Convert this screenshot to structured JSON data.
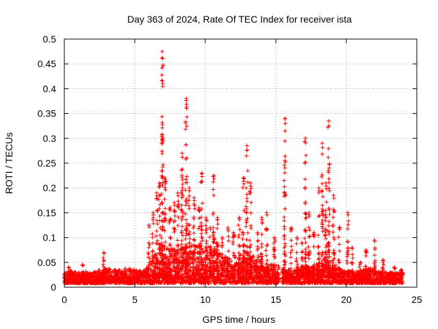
{
  "chart_data": {
    "type": "scatter",
    "title": "Day 363 of 2024, Rate Of TEC Index for receiver ista",
    "xlabel": "GPS time / hours",
    "ylabel": "ROTI / TECUs",
    "xlim": [
      0,
      25
    ],
    "ylim": [
      0,
      0.5
    ],
    "xticks": [
      0,
      5,
      10,
      15,
      20,
      25
    ],
    "yticks": [
      0,
      0.05,
      0.1,
      0.15,
      0.2,
      0.25,
      0.3,
      0.35,
      0.4,
      0.45,
      0.5
    ],
    "grid": true,
    "marker": "+",
    "marker_color": "#ff0000",
    "gap_hours": [
      15.25,
      15.45
    ],
    "baseline_envelope": [
      [
        0.0,
        0.03
      ],
      [
        0.5,
        0.035
      ],
      [
        1.0,
        0.03
      ],
      [
        1.5,
        0.035
      ],
      [
        2.0,
        0.03
      ],
      [
        2.5,
        0.035
      ],
      [
        3.0,
        0.04
      ],
      [
        3.5,
        0.035
      ],
      [
        4.0,
        0.035
      ],
      [
        4.5,
        0.04
      ],
      [
        5.0,
        0.035
      ],
      [
        5.5,
        0.035
      ],
      [
        6.0,
        0.045
      ],
      [
        6.5,
        0.07
      ],
      [
        7.0,
        0.09
      ],
      [
        7.5,
        0.08
      ],
      [
        8.0,
        0.075
      ],
      [
        8.5,
        0.085
      ],
      [
        9.0,
        0.085
      ],
      [
        9.5,
        0.09
      ],
      [
        10.0,
        0.085
      ],
      [
        10.5,
        0.08
      ],
      [
        11.0,
        0.07
      ],
      [
        11.5,
        0.06
      ],
      [
        12.0,
        0.06
      ],
      [
        12.5,
        0.07
      ],
      [
        13.0,
        0.075
      ],
      [
        13.5,
        0.06
      ],
      [
        14.0,
        0.05
      ],
      [
        14.5,
        0.05
      ],
      [
        15.0,
        0.045
      ],
      [
        15.5,
        0.04
      ],
      [
        16.0,
        0.035
      ],
      [
        16.5,
        0.035
      ],
      [
        17.0,
        0.045
      ],
      [
        17.5,
        0.04
      ],
      [
        18.0,
        0.05
      ],
      [
        18.5,
        0.06
      ],
      [
        19.0,
        0.05
      ],
      [
        19.5,
        0.04
      ],
      [
        20.0,
        0.035
      ],
      [
        20.5,
        0.03
      ],
      [
        21.0,
        0.035
      ],
      [
        21.5,
        0.04
      ],
      [
        22.0,
        0.035
      ],
      [
        22.5,
        0.03
      ],
      [
        23.0,
        0.03
      ],
      [
        23.5,
        0.03
      ],
      [
        24.0,
        0.03
      ]
    ],
    "spike_columns": [
      [
        0.3,
        0.04
      ],
      [
        1.3,
        0.045
      ],
      [
        2.8,
        0.07
      ],
      [
        6.0,
        0.125
      ],
      [
        6.3,
        0.15
      ],
      [
        6.55,
        0.19
      ],
      [
        6.75,
        0.21
      ],
      [
        6.95,
        0.475
      ],
      [
        7.15,
        0.22
      ],
      [
        7.5,
        0.16
      ],
      [
        7.8,
        0.17
      ],
      [
        8.05,
        0.19
      ],
      [
        8.35,
        0.27
      ],
      [
        8.65,
        0.38
      ],
      [
        8.85,
        0.2
      ],
      [
        9.2,
        0.18
      ],
      [
        9.55,
        0.16
      ],
      [
        9.75,
        0.23
      ],
      [
        10.05,
        0.14
      ],
      [
        10.35,
        0.12
      ],
      [
        10.6,
        0.225
      ],
      [
        10.85,
        0.14
      ],
      [
        11.2,
        0.1
      ],
      [
        11.6,
        0.12
      ],
      [
        12.0,
        0.11
      ],
      [
        12.4,
        0.14
      ],
      [
        12.7,
        0.22
      ],
      [
        12.95,
        0.285
      ],
      [
        13.2,
        0.21
      ],
      [
        13.7,
        0.11
      ],
      [
        14.0,
        0.14
      ],
      [
        14.35,
        0.15
      ],
      [
        14.9,
        0.1
      ],
      [
        15.65,
        0.34
      ],
      [
        16.1,
        0.12
      ],
      [
        16.5,
        0.1
      ],
      [
        16.85,
        0.09
      ],
      [
        17.1,
        0.3
      ],
      [
        17.35,
        0.15
      ],
      [
        17.7,
        0.11
      ],
      [
        18.05,
        0.2
      ],
      [
        18.3,
        0.29
      ],
      [
        18.55,
        0.21
      ],
      [
        18.75,
        0.335
      ],
      [
        19.1,
        0.185
      ],
      [
        19.5,
        0.12
      ],
      [
        20.1,
        0.15
      ],
      [
        20.4,
        0.08
      ],
      [
        21.0,
        0.05
      ],
      [
        21.4,
        0.075
      ],
      [
        22.0,
        0.095
      ],
      [
        22.6,
        0.055
      ],
      [
        23.4,
        0.04
      ],
      [
        23.9,
        0.035
      ]
    ]
  }
}
